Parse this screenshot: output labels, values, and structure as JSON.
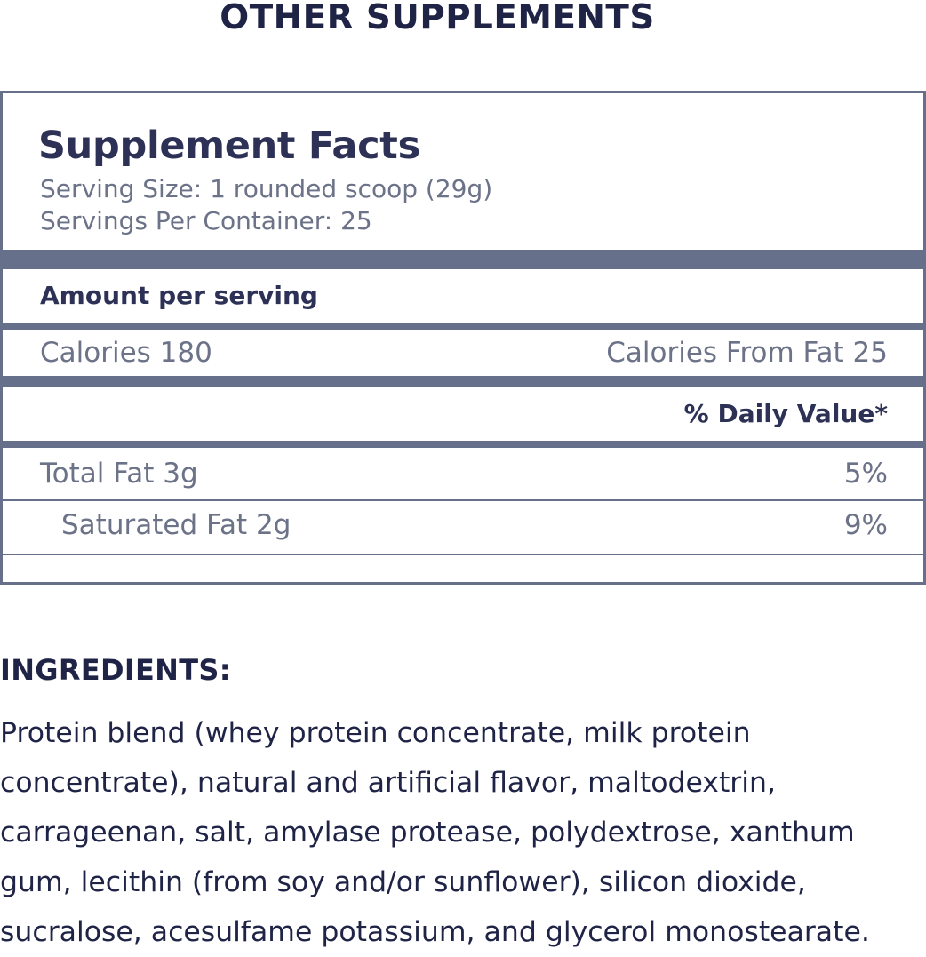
{
  "heading": "OTHER SUPPLEMENTS",
  "facts": {
    "title": "Supplement Facts",
    "serving_size": "Serving Size: 1 rounded scoop (29g)",
    "servings_per_container": "Servings Per Container: 25",
    "amount_per_serving": "Amount per serving",
    "calories": "Calories 180",
    "calories_from_fat": "Calories From Fat 25",
    "daily_value_header": "% Daily Value*",
    "rows": [
      {
        "label": "Total Fat 3g",
        "dv": "5%"
      },
      {
        "label": "Saturated Fat 2g",
        "dv": "9%"
      }
    ]
  },
  "ingredients": {
    "heading": "INGREDIENTS:",
    "text": "Protein blend (whey protein concentrate, milk protein\nconcentrate), natural and artificial flavor, maltodextrin,\ncarrageenan, salt, amylase protease, polydextrose,  xanthum\ngum, lecithin (from soy and/or sunflower), silicon dioxide,\nsucralose, acesulfame potassium, and glycerol monostearate."
  },
  "colors": {
    "navy": "#1f2346",
    "border": "#66708a",
    "muted_text": "#6c7287"
  }
}
